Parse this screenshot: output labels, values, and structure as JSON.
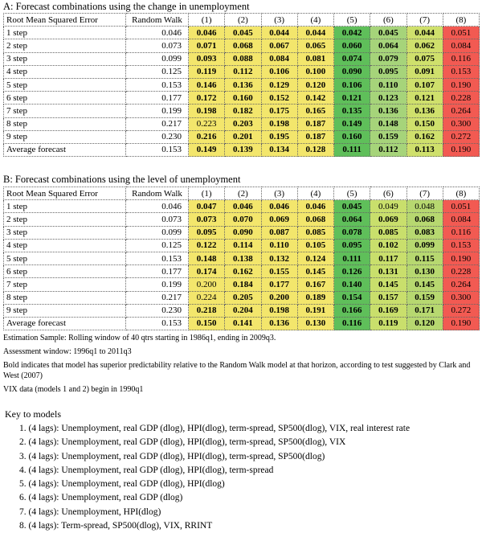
{
  "header": [
    "Root Mean Squared Error",
    "Random Walk",
    "(1)",
    "(2)",
    "(3)",
    "(4)",
    "(5)",
    "(6)",
    "(7)",
    "(8)"
  ],
  "panels": [
    {
      "title": "A: Forecast combinations using the change in unemployment",
      "column_colors": [
        "#f3e66c",
        "#f3e66c",
        "#f3e66c",
        "#f3e66c",
        "#5fbf5a",
        "#a6d47a",
        "#cfe06c",
        "#f25a52"
      ],
      "rows": [
        {
          "label": "1 step",
          "rw": "0.046",
          "models": [
            "0.046",
            "0.045",
            "0.044",
            "0.044",
            "0.042",
            "0.045",
            "0.044",
            "0.051"
          ],
          "bold": [
            true,
            true,
            true,
            true,
            true,
            true,
            true,
            false
          ]
        },
        {
          "label": "2 step",
          "rw": "0.073",
          "models": [
            "0.071",
            "0.068",
            "0.067",
            "0.065",
            "0.060",
            "0.064",
            "0.062",
            "0.084"
          ],
          "bold": [
            true,
            true,
            true,
            true,
            true,
            true,
            true,
            false
          ]
        },
        {
          "label": "3 step",
          "rw": "0.099",
          "models": [
            "0.093",
            "0.088",
            "0.084",
            "0.081",
            "0.074",
            "0.079",
            "0.075",
            "0.116"
          ],
          "bold": [
            true,
            true,
            true,
            true,
            true,
            true,
            true,
            false
          ]
        },
        {
          "label": "4 step",
          "rw": "0.125",
          "models": [
            "0.119",
            "0.112",
            "0.106",
            "0.100",
            "0.090",
            "0.095",
            "0.091",
            "0.153"
          ],
          "bold": [
            true,
            true,
            true,
            true,
            true,
            true,
            true,
            false
          ]
        },
        {
          "label": "5 step",
          "rw": "0.153",
          "models": [
            "0.146",
            "0.136",
            "0.129",
            "0.120",
            "0.106",
            "0.110",
            "0.107",
            "0.190"
          ],
          "bold": [
            true,
            true,
            true,
            true,
            true,
            true,
            true,
            false
          ]
        },
        {
          "label": "6 step",
          "rw": "0.177",
          "models": [
            "0.172",
            "0.160",
            "0.152",
            "0.142",
            "0.121",
            "0.123",
            "0.121",
            "0.228"
          ],
          "bold": [
            true,
            true,
            true,
            true,
            true,
            true,
            true,
            false
          ]
        },
        {
          "label": "7 step",
          "rw": "0.199",
          "models": [
            "0.198",
            "0.182",
            "0.175",
            "0.165",
            "0.135",
            "0.136",
            "0.136",
            "0.264"
          ],
          "bold": [
            true,
            true,
            true,
            true,
            true,
            true,
            true,
            false
          ]
        },
        {
          "label": "8 step",
          "rw": "0.217",
          "models": [
            "0.223",
            "0.203",
            "0.198",
            "0.187",
            "0.149",
            "0.148",
            "0.150",
            "0.300"
          ],
          "bold": [
            false,
            true,
            true,
            true,
            true,
            true,
            true,
            false
          ]
        },
        {
          "label": "9 step",
          "rw": "0.230",
          "models": [
            "0.216",
            "0.201",
            "0.195",
            "0.187",
            "0.160",
            "0.159",
            "0.162",
            "0.272"
          ],
          "bold": [
            true,
            true,
            true,
            true,
            true,
            true,
            true,
            false
          ]
        },
        {
          "label": "Average forecast",
          "rw": "0.153",
          "models": [
            "0.149",
            "0.139",
            "0.134",
            "0.128",
            "0.111",
            "0.112",
            "0.113",
            "0.190"
          ],
          "bold": [
            true,
            true,
            true,
            true,
            true,
            true,
            true,
            false
          ]
        }
      ]
    },
    {
      "title": "B: Forecast combinations using the level of unemployment",
      "column_colors": [
        "#f3e66c",
        "#f3e66c",
        "#f3e66c",
        "#f3e66c",
        "#5fbf5a",
        "#c9df6c",
        "#b7d870",
        "#f25a52"
      ],
      "rows": [
        {
          "label": "1 step",
          "rw": "0.046",
          "models": [
            "0.047",
            "0.046",
            "0.046",
            "0.046",
            "0.045",
            "0.049",
            "0.048",
            "0.051"
          ],
          "bold": [
            true,
            true,
            true,
            true,
            true,
            false,
            false,
            false
          ]
        },
        {
          "label": "2 step",
          "rw": "0.073",
          "models": [
            "0.073",
            "0.070",
            "0.069",
            "0.068",
            "0.064",
            "0.069",
            "0.068",
            "0.084"
          ],
          "bold": [
            true,
            true,
            true,
            true,
            true,
            true,
            true,
            false
          ]
        },
        {
          "label": "3 step",
          "rw": "0.099",
          "models": [
            "0.095",
            "0.090",
            "0.087",
            "0.085",
            "0.078",
            "0.085",
            "0.083",
            "0.116"
          ],
          "bold": [
            true,
            true,
            true,
            true,
            true,
            true,
            true,
            false
          ]
        },
        {
          "label": "4 step",
          "rw": "0.125",
          "models": [
            "0.122",
            "0.114",
            "0.110",
            "0.105",
            "0.095",
            "0.102",
            "0.099",
            "0.153"
          ],
          "bold": [
            true,
            true,
            true,
            true,
            true,
            true,
            true,
            false
          ]
        },
        {
          "label": "5 step",
          "rw": "0.153",
          "models": [
            "0.148",
            "0.138",
            "0.132",
            "0.124",
            "0.111",
            "0.117",
            "0.115",
            "0.190"
          ],
          "bold": [
            true,
            true,
            true,
            true,
            true,
            true,
            true,
            false
          ]
        },
        {
          "label": "6 step",
          "rw": "0.177",
          "models": [
            "0.174",
            "0.162",
            "0.155",
            "0.145",
            "0.126",
            "0.131",
            "0.130",
            "0.228"
          ],
          "bold": [
            true,
            true,
            true,
            true,
            true,
            true,
            true,
            false
          ]
        },
        {
          "label": "7 step",
          "rw": "0.199",
          "models": [
            "0.200",
            "0.184",
            "0.177",
            "0.167",
            "0.140",
            "0.145",
            "0.145",
            "0.264"
          ],
          "bold": [
            false,
            true,
            true,
            true,
            true,
            true,
            true,
            false
          ]
        },
        {
          "label": "8 step",
          "rw": "0.217",
          "models": [
            "0.224",
            "0.205",
            "0.200",
            "0.189",
            "0.154",
            "0.157",
            "0.159",
            "0.300"
          ],
          "bold": [
            false,
            true,
            true,
            true,
            true,
            true,
            true,
            false
          ]
        },
        {
          "label": "9 step",
          "rw": "0.230",
          "models": [
            "0.218",
            "0.204",
            "0.198",
            "0.191",
            "0.166",
            "0.169",
            "0.171",
            "0.272"
          ],
          "bold": [
            true,
            true,
            true,
            true,
            true,
            true,
            true,
            false
          ]
        },
        {
          "label": "Average forecast",
          "rw": "0.153",
          "models": [
            "0.150",
            "0.141",
            "0.136",
            "0.130",
            "0.116",
            "0.119",
            "0.120",
            "0.190"
          ],
          "bold": [
            true,
            true,
            true,
            true,
            true,
            true,
            true,
            false
          ]
        }
      ]
    }
  ],
  "notes": [
    "Estimation Sample: Rolling window of 40 qtrs starting in 1986q1, ending in 2009q3.",
    "Assessment window: 1996q1 to 2011q3",
    "Bold indicates that model has superior predictability relative to the Random Walk model at that horizon, according to test suggested by Clark and West (2007)",
    "VIX data (models 1 and 2) begin in 1990q1"
  ],
  "key": {
    "title": "Key to models",
    "items": [
      "1. (4 lags): Unemployment, real GDP (dlog),  HPI(dlog), term-spread, SP500(dlog), VIX, real interest rate",
      "2. (4 lags): Unemployment, real GDP (dlog),  HPI(dlog), term-spread, SP500(dlog), VIX",
      "3. (4 lags): Unemployment, real GDP (dlog),  HPI(dlog), term-spread, SP500(dlog)",
      "4. (4 lags): Unemployment, real GDP (dlog),  HPI(dlog), term-spread",
      "5. (4 lags): Unemployment, real GDP (dlog),  HPI(dlog)",
      "6. (4 lags): Unemployment, real GDP (dlog)",
      "7. (4 lags): Unemployment, HPI(dlog)",
      "8. (4 lags): Term-spread, SP500(dlog), VIX, RRINT"
    ]
  }
}
